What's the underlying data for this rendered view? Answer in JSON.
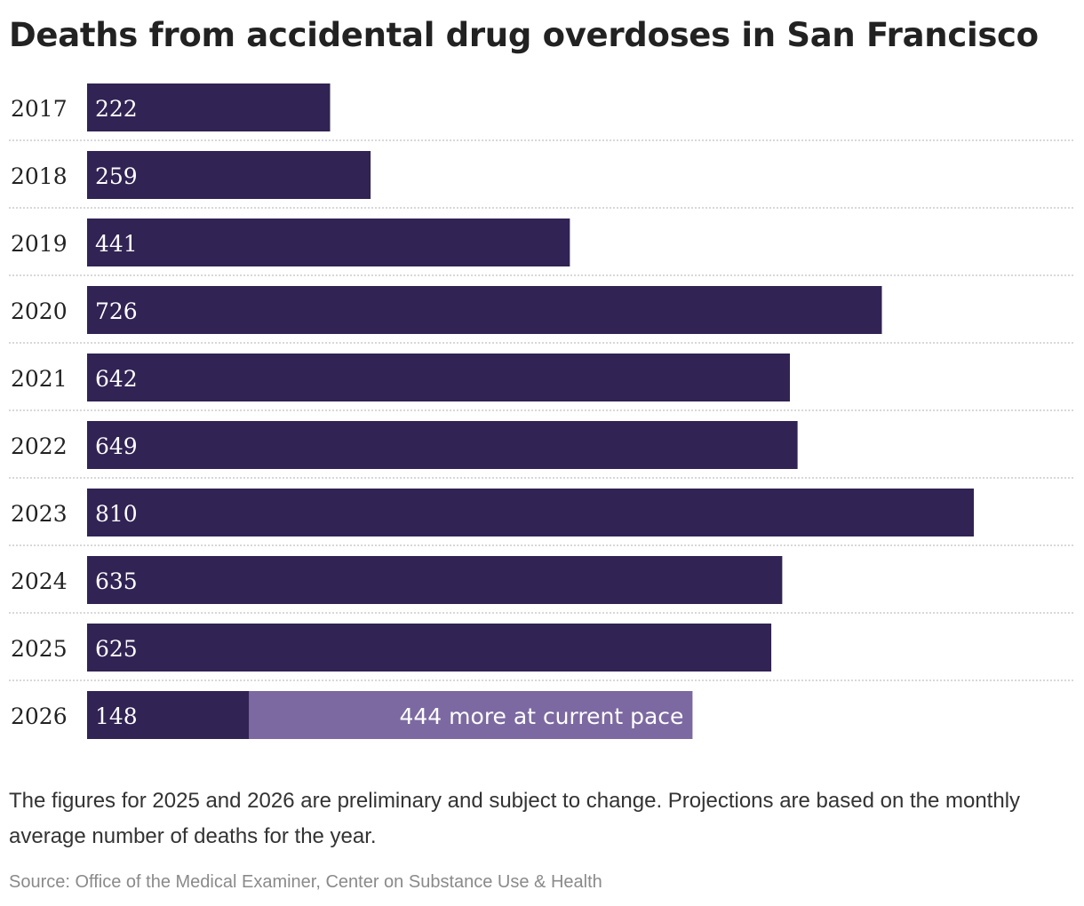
{
  "chart_data": {
    "type": "bar",
    "orientation": "horizontal",
    "title": "Deaths from accidental drug overdoses in San Francisco",
    "categories": [
      "2017",
      "2018",
      "2019",
      "2020",
      "2021",
      "2022",
      "2023",
      "2024",
      "2025",
      "2026"
    ],
    "series": [
      {
        "values": [
          222,
          259,
          441,
          726,
          642,
          649,
          810,
          635,
          625,
          148
        ],
        "labels": [
          "222",
          "259",
          "441",
          "726",
          "642",
          "649",
          "810",
          "635",
          "625",
          "148"
        ],
        "color": "#312354"
      },
      {
        "values": [
          0,
          0,
          0,
          0,
          0,
          0,
          0,
          0,
          0,
          444
        ],
        "labels": [
          "",
          "",
          "",
          "",
          "",
          "",
          "",
          "",
          "",
          "444 more at current pace"
        ],
        "color": "#7c69a1"
      }
    ],
    "stacked": true,
    "xlim": [
      0,
      810
    ],
    "grid": false,
    "legend": "none",
    "colors": {
      "bar": "#312354",
      "projection": "#7c69a1",
      "divider": "#cccccc"
    }
  },
  "note": "The figures for 2025 and 2026 are preliminary and subject to change. Projections are based on the monthly average number of deaths for the year.",
  "source": "Source: Office of the Medical Examiner, Center on Substance Use & Health"
}
